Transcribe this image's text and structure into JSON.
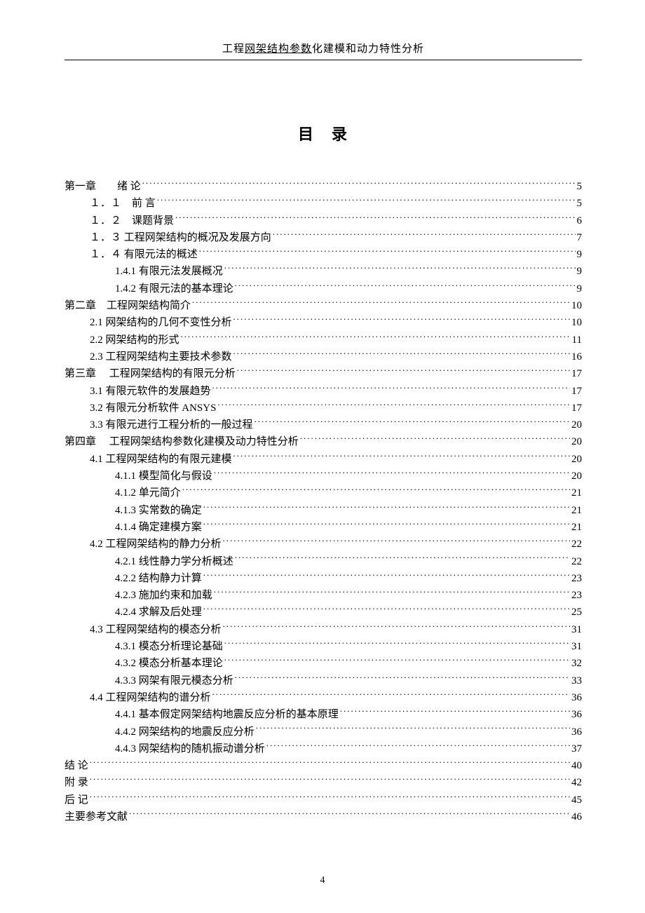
{
  "header": {
    "prefix": "工程",
    "underlined": "网架结构参数",
    "suffix": "化建模和动力特性分析"
  },
  "title": "目　录",
  "footer_page": "4",
  "toc": [
    {
      "level": 0,
      "label": "第一章　　绪 论",
      "page": "5"
    },
    {
      "level": 1,
      "label": "１．１　前 言",
      "page": "5"
    },
    {
      "level": 1,
      "label": "１．２　课题背景",
      "page": "6"
    },
    {
      "level": 1,
      "label": "１．３ 工程网架结构的概况及发展方向",
      "page": "7"
    },
    {
      "level": 1,
      "label": "１．４ 有限元法的概述",
      "page": "9"
    },
    {
      "level": 2,
      "label": "1.4.1 有限元法发展概况",
      "page": "9"
    },
    {
      "level": 2,
      "label": "1.4.2 有限元法的基本理论",
      "page": "9"
    },
    {
      "level": 0,
      "label": "第二章　工程网架结构简介",
      "page": "10"
    },
    {
      "level": 1,
      "label": "2.1 网架结构的几何不变性分析",
      "page": "10"
    },
    {
      "level": 1,
      "label": "2.2 网架结构的形式",
      "page": "11"
    },
    {
      "level": 1,
      "label": "2.3 工程网架结构主要技术参数",
      "page": "16"
    },
    {
      "level": 0,
      "label": "第三章　 工程网架结构的有限元分析",
      "page": "17"
    },
    {
      "level": 1,
      "label": "3.1 有限元软件的发展趋势",
      "page": "17"
    },
    {
      "level": 1,
      "label": "3.2 有限元分析软件 ANSYS",
      "page": "17"
    },
    {
      "level": 1,
      "label": "3.3 有限元进行工程分析的一般过程",
      "page": "20"
    },
    {
      "level": 0,
      "label": "第四章　 工程网架结构参数化建模及动力特性分析",
      "page": "20"
    },
    {
      "level": 1,
      "label": "4.1 工程网架结构的有限元建模",
      "page": "20"
    },
    {
      "level": 2,
      "label": "4.1.1 模型简化与假设",
      "page": "20"
    },
    {
      "level": 2,
      "label": "4.1.2 单元简介",
      "page": "21"
    },
    {
      "level": 2,
      "label": "4.1.3 实常数的确定",
      "page": "21"
    },
    {
      "level": 2,
      "label": "4.1.4 确定建模方案",
      "page": "21"
    },
    {
      "level": 1,
      "label": "4.2 工程网架结构的静力分析",
      "page": "22"
    },
    {
      "level": 2,
      "label": "4.2.1 线性静力学分析概述",
      "page": "22"
    },
    {
      "level": 2,
      "label": "4.2.2 结构静力计算",
      "page": "23"
    },
    {
      "level": 2,
      "label": "4.2.3 施加约束和加载",
      "page": "23"
    },
    {
      "level": 2,
      "label": "4.2.4 求解及后处理",
      "page": "25"
    },
    {
      "level": 1,
      "label": "4.3 工程网架结构的模态分析",
      "page": "31"
    },
    {
      "level": 2,
      "label": "4.3.1 模态分析理论基础",
      "page": "31"
    },
    {
      "level": 2,
      "label": "4.3.2 模态分析基本理论",
      "page": "32"
    },
    {
      "level": 2,
      "label": "4.3.3 网架有限元模态分析",
      "page": "33"
    },
    {
      "level": 1,
      "label": "4.4 工程网架结构的谱分析",
      "page": "36"
    },
    {
      "level": 2,
      "label": "4.4.1 基本假定网架结构地震反应分析的基本原理",
      "page": "36"
    },
    {
      "level": 2,
      "label": "4.4.2 网架结构的地震反应分析",
      "page": "36"
    },
    {
      "level": 2,
      "label": "4.4.3 网架结构的随机振动谱分析",
      "page": "37"
    },
    {
      "level": 0,
      "label": "结 论",
      "page": "40"
    },
    {
      "level": 0,
      "label": "附 录",
      "page": "42"
    },
    {
      "level": 0,
      "label": "后 记",
      "page": "45"
    },
    {
      "level": 0,
      "label": "主要参考文献",
      "page": "46"
    }
  ]
}
